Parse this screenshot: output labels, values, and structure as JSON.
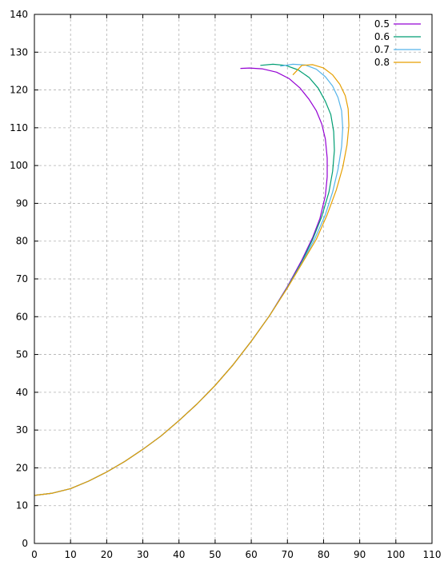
{
  "chart_data": {
    "type": "line",
    "title": "",
    "xlabel": "",
    "ylabel": "",
    "xlim": [
      0,
      110
    ],
    "ylim": [
      0,
      140
    ],
    "x_ticks": [
      0,
      10,
      20,
      30,
      40,
      50,
      60,
      70,
      80,
      90,
      100,
      110
    ],
    "y_ticks": [
      0,
      10,
      20,
      30,
      40,
      50,
      60,
      70,
      80,
      90,
      100,
      110,
      120,
      130,
      140
    ],
    "grid": true,
    "legend_position": "top-right",
    "series": [
      {
        "name": "0.5",
        "color": "#9400d3",
        "x": [
          0,
          5,
          10,
          15,
          20,
          25,
          30,
          35,
          40,
          45,
          50,
          55,
          60,
          65,
          70,
          74,
          77,
          79,
          80.5,
          81,
          81,
          80.5,
          79.5,
          78,
          76,
          73.5,
          70.5,
          67,
          63,
          59.5,
          57
        ],
        "y": [
          12.7,
          13.3,
          14.5,
          16.5,
          18.9,
          21.7,
          24.9,
          28.4,
          32.5,
          36.9,
          41.8,
          47.3,
          53.5,
          60.2,
          68.0,
          75.0,
          81.0,
          86.0,
          92.0,
          97.0,
          102.0,
          107.0,
          111.0,
          114.5,
          117.5,
          120.5,
          123.0,
          124.7,
          125.6,
          125.8,
          125.7
        ]
      },
      {
        "name": "0.6",
        "color": "#009e73",
        "x": [
          0,
          5,
          10,
          15,
          20,
          25,
          30,
          35,
          40,
          45,
          50,
          55,
          60,
          65,
          70,
          74,
          77,
          79.5,
          81.5,
          82.5,
          83,
          82.8,
          82,
          80.5,
          78.5,
          76,
          73,
          69.5,
          66,
          62.5
        ],
        "y": [
          12.7,
          13.3,
          14.5,
          16.5,
          18.9,
          21.7,
          24.9,
          28.4,
          32.5,
          36.9,
          41.8,
          47.3,
          53.5,
          60.2,
          67.8,
          74.5,
          80.5,
          86.5,
          93.0,
          98.5,
          104.0,
          109.0,
          113.5,
          117.0,
          120.5,
          123.3,
          125.3,
          126.5,
          126.8,
          126.5
        ]
      },
      {
        "name": "0.7",
        "color": "#56b4e9",
        "x": [
          0,
          5,
          10,
          15,
          20,
          25,
          30,
          35,
          40,
          45,
          50,
          55,
          60,
          65,
          70,
          74,
          77.5,
          80.5,
          82.5,
          84,
          85,
          85.3,
          85,
          84,
          82.5,
          80.5,
          78,
          75,
          71.5,
          68
        ],
        "y": [
          12.7,
          13.3,
          14.5,
          16.5,
          18.9,
          21.7,
          24.9,
          28.4,
          32.5,
          36.9,
          41.8,
          47.3,
          53.5,
          60.2,
          67.7,
          74.2,
          80.5,
          87.0,
          93.0,
          99.0,
          105.0,
          110.0,
          114.5,
          118.0,
          121.0,
          123.5,
          125.5,
          126.6,
          126.8,
          126.3
        ]
      },
      {
        "name": "0.8",
        "color": "#e69f00",
        "x": [
          0,
          5,
          10,
          15,
          20,
          25,
          30,
          35,
          40,
          45,
          50,
          55,
          60,
          65,
          70,
          74,
          78,
          81,
          83.5,
          85.3,
          86.5,
          87,
          86.8,
          86,
          84.5,
          82.5,
          80,
          77,
          74,
          71.5
        ],
        "y": [
          12.7,
          13.3,
          14.5,
          16.5,
          18.9,
          21.7,
          24.9,
          28.4,
          32.5,
          36.9,
          41.8,
          47.3,
          53.5,
          60.2,
          67.6,
          74.0,
          80.5,
          87.0,
          93.5,
          99.5,
          105.5,
          110.5,
          115.0,
          118.5,
          121.5,
          124.0,
          125.8,
          126.7,
          126.5,
          124.0
        ]
      }
    ]
  }
}
